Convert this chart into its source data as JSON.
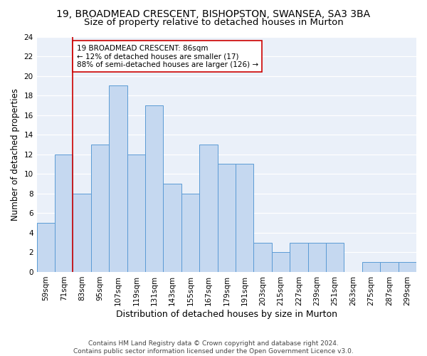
{
  "title_line1": "19, BROADMEAD CRESCENT, BISHOPSTON, SWANSEA, SA3 3BA",
  "title_line2": "Size of property relative to detached houses in Murton",
  "xlabel": "Distribution of detached houses by size in Murton",
  "ylabel": "Number of detached properties",
  "categories": [
    "59sqm",
    "71sqm",
    "83sqm",
    "95sqm",
    "107sqm",
    "119sqm",
    "131sqm",
    "143sqm",
    "155sqm",
    "167sqm",
    "179sqm",
    "191sqm",
    "203sqm",
    "215sqm",
    "227sqm",
    "239sqm",
    "251sqm",
    "263sqm",
    "275sqm",
    "287sqm",
    "299sqm"
  ],
  "values": [
    5,
    12,
    8,
    13,
    19,
    12,
    17,
    9,
    8,
    13,
    11,
    11,
    3,
    2,
    3,
    3,
    3,
    0,
    1,
    1,
    1
  ],
  "bar_color": "#c5d8f0",
  "bar_edge_color": "#5b9bd5",
  "subject_line_color": "#cc0000",
  "annotation_text": "19 BROADMEAD CRESCENT: 86sqm\n← 12% of detached houses are smaller (17)\n88% of semi-detached houses are larger (126) →",
  "annotation_box_color": "#ffffff",
  "annotation_box_edge": "#cc0000",
  "ylim": [
    0,
    24
  ],
  "yticks": [
    0,
    2,
    4,
    6,
    8,
    10,
    12,
    14,
    16,
    18,
    20,
    22,
    24
  ],
  "background_color": "#eaf0f9",
  "footer_text": "Contains HM Land Registry data © Crown copyright and database right 2024.\nContains public sector information licensed under the Open Government Licence v3.0.",
  "title_fontsize": 10,
  "subtitle_fontsize": 9.5,
  "axis_label_fontsize": 8.5,
  "tick_fontsize": 7.5,
  "annotation_fontsize": 7.5
}
